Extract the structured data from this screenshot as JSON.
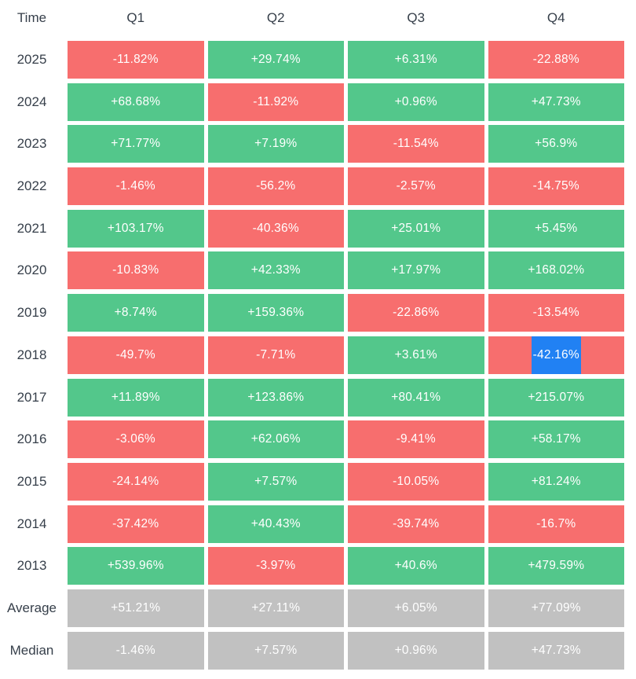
{
  "colors": {
    "positive": "#53c78b",
    "negative": "#f76e6e",
    "summary": "#c1c1c1",
    "selection": "#2181f3",
    "label_text": "#363f4a",
    "cell_text": "#ffffff"
  },
  "chart_data": {
    "type": "heatmap",
    "corner_label": "Time",
    "columns": [
      "Q1",
      "Q2",
      "Q3",
      "Q4"
    ],
    "color_coding": {
      "positive_value": "green",
      "negative_value": "red",
      "summary_row": "gray"
    },
    "rows": [
      {
        "label": "2025",
        "type": "year",
        "values": [
          "-11.82%",
          "+29.74%",
          "+6.31%",
          "-22.88%"
        ]
      },
      {
        "label": "2024",
        "type": "year",
        "values": [
          "+68.68%",
          "-11.92%",
          "+0.96%",
          "+47.73%"
        ]
      },
      {
        "label": "2023",
        "type": "year",
        "values": [
          "+71.77%",
          "+7.19%",
          "-11.54%",
          "+56.9%"
        ]
      },
      {
        "label": "2022",
        "type": "year",
        "values": [
          "-1.46%",
          "-56.2%",
          "-2.57%",
          "-14.75%"
        ]
      },
      {
        "label": "2021",
        "type": "year",
        "values": [
          "+103.17%",
          "-40.36%",
          "+25.01%",
          "+5.45%"
        ]
      },
      {
        "label": "2020",
        "type": "year",
        "values": [
          "-10.83%",
          "+42.33%",
          "+17.97%",
          "+168.02%"
        ]
      },
      {
        "label": "2019",
        "type": "year",
        "values": [
          "+8.74%",
          "+159.36%",
          "-22.86%",
          "-13.54%"
        ]
      },
      {
        "label": "2018",
        "type": "year",
        "values": [
          "-49.7%",
          "-7.71%",
          "+3.61%",
          "-42.16%"
        ]
      },
      {
        "label": "2017",
        "type": "year",
        "values": [
          "+11.89%",
          "+123.86%",
          "+80.41%",
          "+215.07%"
        ]
      },
      {
        "label": "2016",
        "type": "year",
        "values": [
          "-3.06%",
          "+62.06%",
          "-9.41%",
          "+58.17%"
        ]
      },
      {
        "label": "2015",
        "type": "year",
        "values": [
          "-24.14%",
          "+7.57%",
          "-10.05%",
          "+81.24%"
        ]
      },
      {
        "label": "2014",
        "type": "year",
        "values": [
          "-37.42%",
          "+40.43%",
          "-39.74%",
          "-16.7%"
        ]
      },
      {
        "label": "2013",
        "type": "year",
        "values": [
          "+539.96%",
          "-3.97%",
          "+40.6%",
          "+479.59%"
        ]
      },
      {
        "label": "Average",
        "type": "summary",
        "values": [
          "+51.21%",
          "+27.11%",
          "+6.05%",
          "+77.09%"
        ]
      },
      {
        "label": "Median",
        "type": "summary",
        "values": [
          "-1.46%",
          "+7.57%",
          "+0.96%",
          "+47.73%"
        ]
      }
    ],
    "highlighted_cell": {
      "row": "2018",
      "column": "Q4",
      "value": "-42.16%"
    }
  }
}
